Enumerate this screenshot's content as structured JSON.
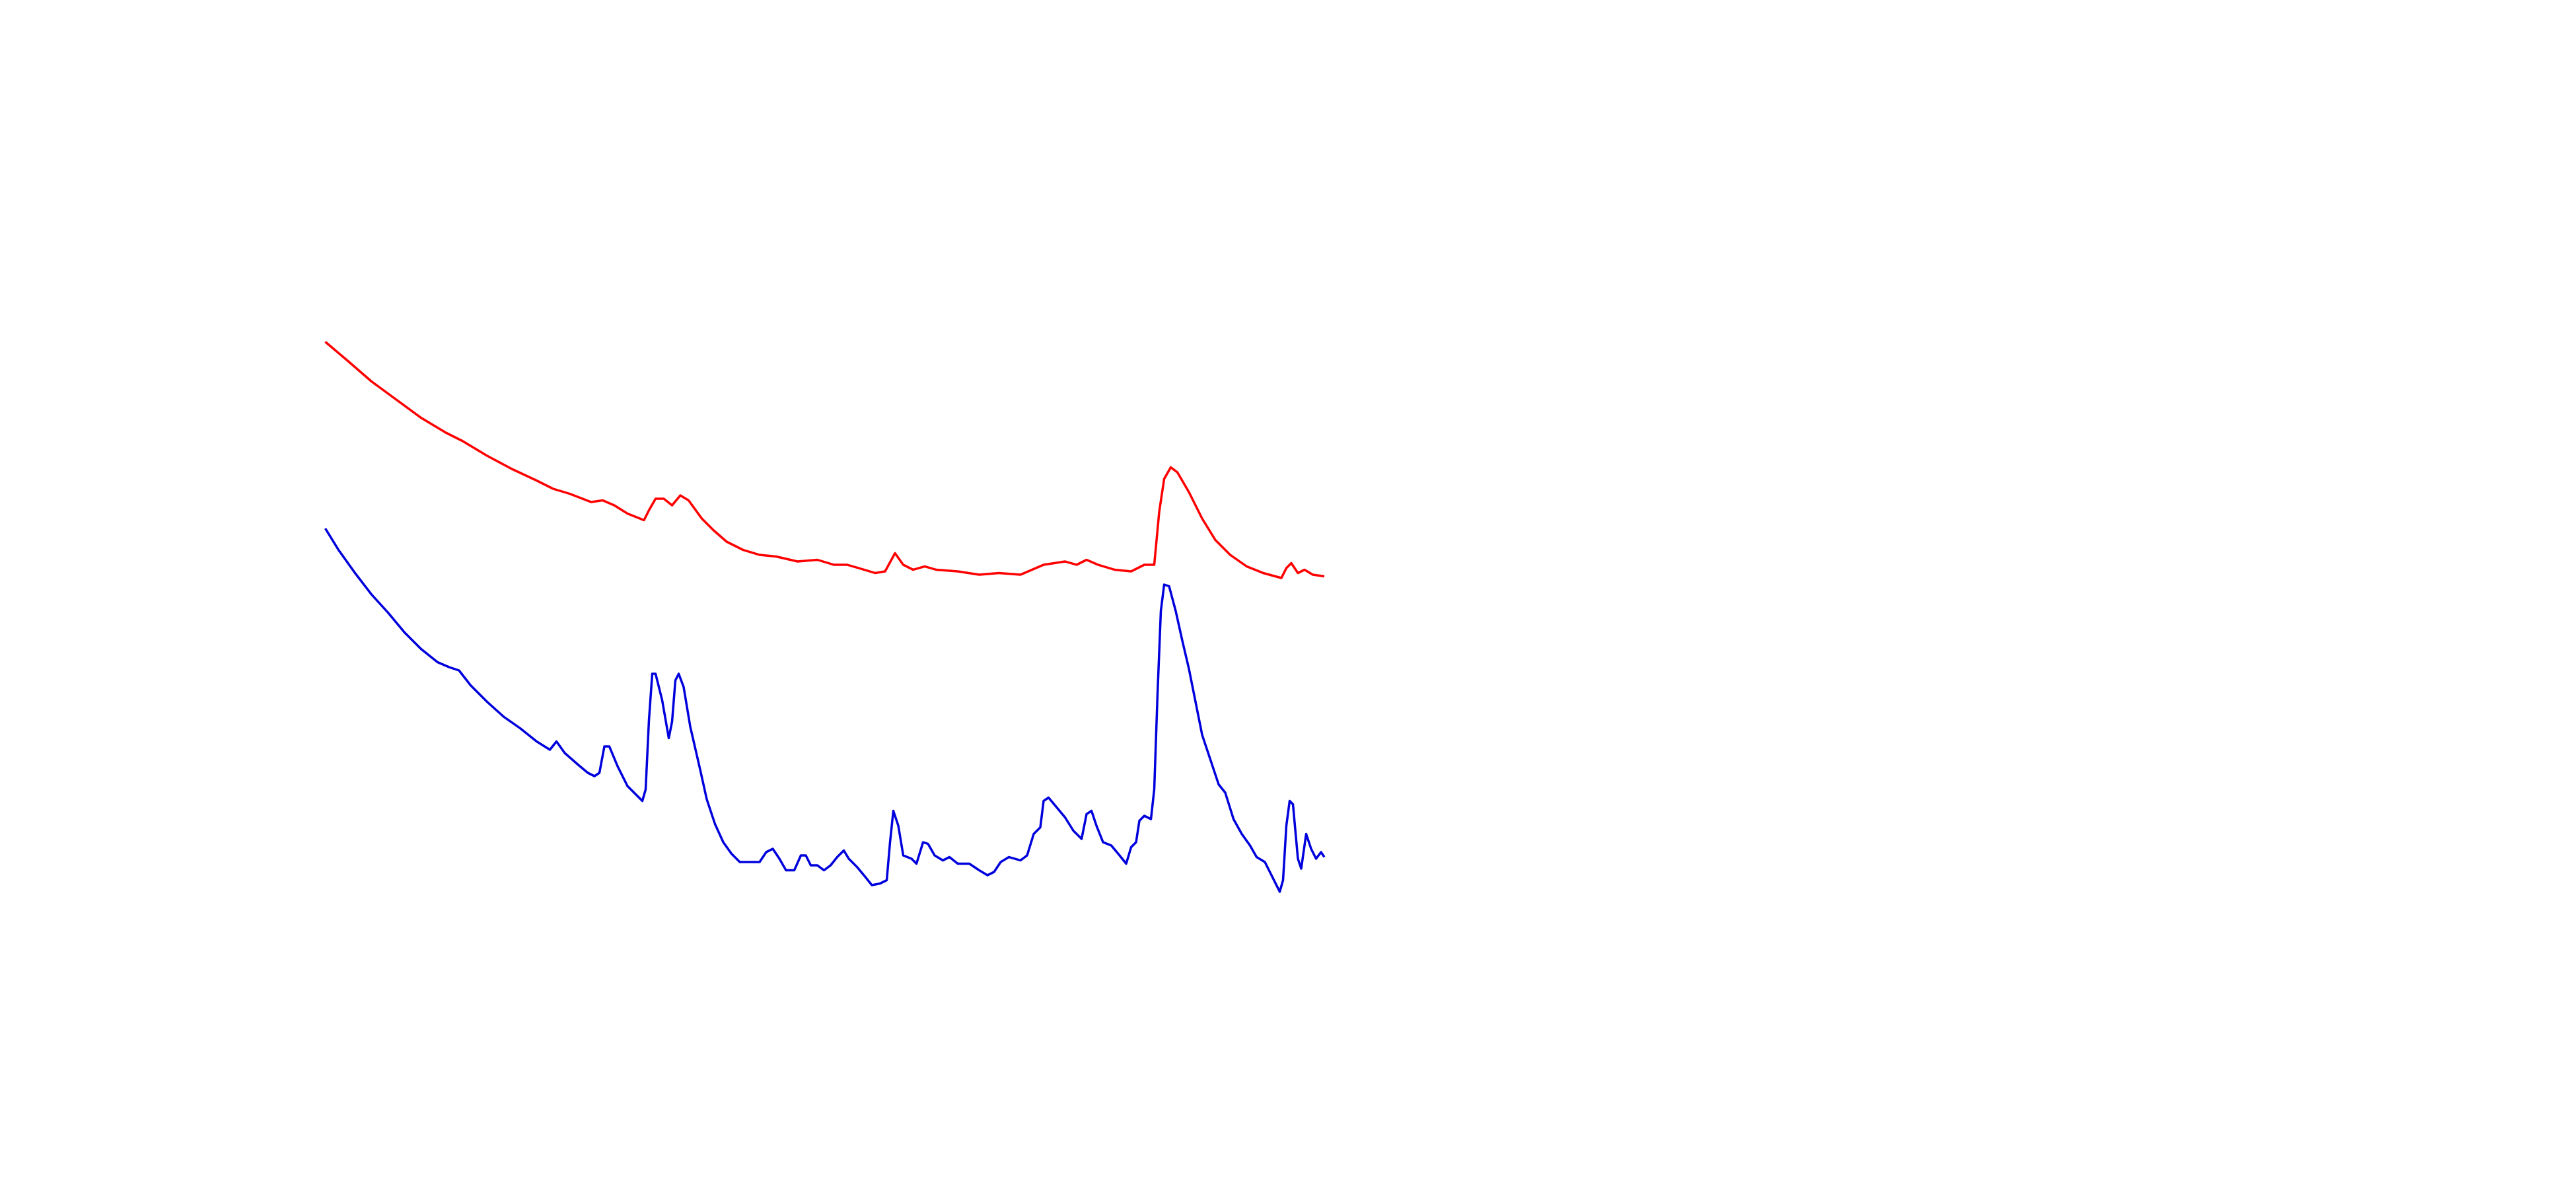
{
  "chart_data": {
    "type": "line",
    "xlim": [
      0,
      1560
    ],
    "ylim": [
      0,
      720
    ],
    "series": [
      {
        "color": "#ff0000",
        "x": [
          197,
          210,
          225,
          240,
          255,
          270,
          280,
          295,
          310,
          325,
          335,
          345,
          358,
          365,
          372,
          380,
          390,
          393,
          397,
          402,
          407,
          412,
          417,
          425,
          432,
          440,
          450,
          460,
          470,
          483,
          495,
          505,
          513,
          520,
          530,
          536,
          542,
          547,
          553,
          560,
          567,
          580,
          593,
          605,
          618,
          625,
          632,
          645,
          652,
          658,
          665,
          675,
          685,
          693,
          699,
          702,
          705,
          709,
          713,
          720,
          728,
          736,
          745,
          755,
          765,
          776,
          779,
          782,
          786,
          790,
          795,
          802
        ],
        "values": [
          513,
          502,
          489,
          478,
          467,
          458,
          453,
          444,
          436,
          429,
          424,
          421,
          416,
          417,
          414,
          409,
          405,
          411,
          418,
          418,
          414,
          420,
          417,
          406,
          399,
          392,
          387,
          384,
          383,
          380,
          381,
          378,
          378,
          376,
          373,
          374,
          385,
          378,
          375,
          377,
          375,
          374,
          372,
          373,
          372,
          375,
          378,
          380,
          378,
          381,
          378,
          375,
          374,
          378,
          378,
          410,
          430,
          437,
          434,
          422,
          406,
          393,
          384,
          377,
          373,
          370,
          376,
          379,
          373,
          375,
          372,
          371
        ]
      },
      {
        "color": "#0000dd",
        "x": [
          197,
          205,
          215,
          225,
          235,
          245,
          255,
          265,
          272,
          278,
          285,
          295,
          305,
          315,
          325,
          333,
          337,
          342,
          350,
          356,
          360,
          363,
          366,
          369,
          374,
          380,
          385,
          389,
          391,
          393,
          395,
          397,
          401,
          405,
          407,
          409,
          411,
          414,
          418,
          424,
          428,
          433,
          438,
          443,
          448,
          455,
          460,
          464,
          468,
          472,
          476,
          481,
          485,
          488,
          491,
          495,
          499,
          503,
          507,
          511,
          514,
          519,
          524,
          528,
          533,
          537,
          539,
          541,
          544,
          547,
          552,
          555,
          559,
          562,
          566,
          571,
          575,
          580,
          587,
          593,
          598,
          602,
          606,
          611,
          618,
          622,
          626,
          630,
          632,
          635,
          640,
          645,
          650,
          655,
          658,
          661,
          664,
          668,
          673,
          678,
          682,
          685,
          688,
          690,
          693,
          697,
          699,
          701,
          703,
          705,
          708,
          712,
          716,
          720,
          724,
          728,
          733,
          738,
          742,
          747,
          752,
          757,
          761,
          766,
          770,
          775,
          777,
          779,
          781,
          783,
          786,
          788,
          791,
          794,
          797,
          800,
          802
        ],
        "values": [
          400,
          387,
          373,
          360,
          349,
          337,
          327,
          319,
          316,
          314,
          305,
          295,
          286,
          279,
          271,
          266,
          271,
          264,
          257,
          252,
          250,
          252,
          268,
          268,
          256,
          244,
          239,
          235,
          242,
          284,
          312,
          312,
          296,
          273,
          283,
          308,
          312,
          304,
          280,
          254,
          236,
          221,
          210,
          203,
          198,
          198,
          198,
          204,
          206,
          200,
          193,
          193,
          202,
          202,
          196,
          196,
          193,
          196,
          201,
          205,
          200,
          195,
          189,
          184,
          185,
          187,
          210,
          229,
          220,
          202,
          200,
          197,
          210,
          209,
          202,
          199,
          201,
          197,
          197,
          193,
          190,
          192,
          198,
          201,
          199,
          202,
          215,
          219,
          235,
          237,
          231,
          225,
          217,
          212,
          227,
          229,
          220,
          210,
          208,
          202,
          197,
          207,
          210,
          223,
          226,
          224,
          242,
          300,
          350,
          366,
          365,
          350,
          332,
          315,
          295,
          275,
          260,
          245,
          240,
          224,
          215,
          208,
          201,
          198,
          190,
          180,
          187,
          220,
          235,
          233,
          200,
          194,
          215,
          206,
          200,
          204,
          201
        ]
      }
    ]
  }
}
